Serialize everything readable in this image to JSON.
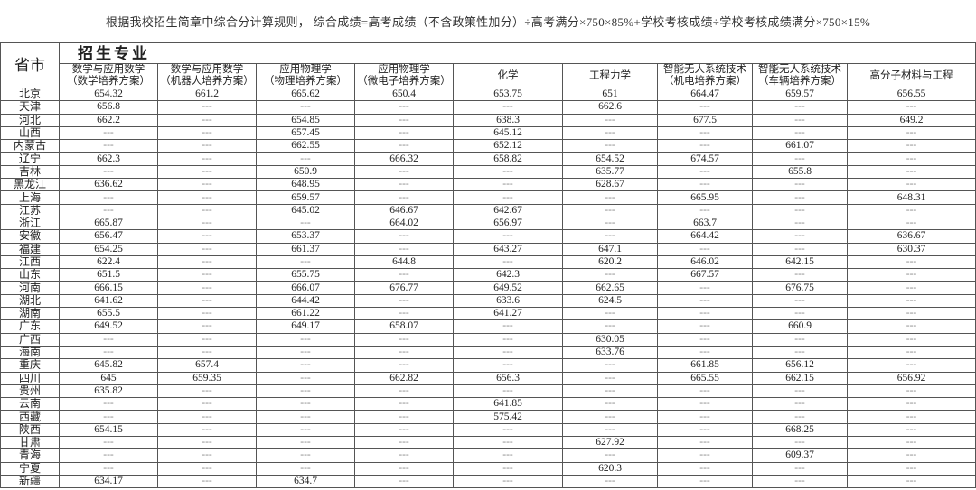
{
  "note": "根据我校招生简章中综合分计算规则， 综合成绩=高考成绩（不含政策性加分）÷高考满分×750×85%+学校考核成绩÷学校考核成绩满分×750×15%",
  "table": {
    "province_header": "省市",
    "group_header": "招生专业",
    "columns": [
      [
        "数学与应用数学",
        "（数学培养方案）"
      ],
      [
        "数学与应用数学",
        "（机器人培养方案）"
      ],
      [
        "应用物理学",
        "（物理培养方案）"
      ],
      [
        "应用物理学",
        "（微电子培养方案）"
      ],
      [
        "化学",
        ""
      ],
      [
        "工程力学",
        ""
      ],
      [
        "智能无人系统技术",
        "（机电培养方案）"
      ],
      [
        "智能无人系统技术",
        "（车辆培养方案）"
      ],
      [
        "高分子材料与工程",
        ""
      ]
    ],
    "rows": [
      {
        "province": "北京",
        "values": [
          "654.32",
          "661.2",
          "665.62",
          "650.4",
          "653.75",
          "651",
          "664.47",
          "659.57",
          "656.55"
        ]
      },
      {
        "province": "天津",
        "values": [
          "656.8",
          "---",
          "---",
          "---",
          "---",
          "662.6",
          "---",
          "---",
          "---"
        ]
      },
      {
        "province": "河北",
        "values": [
          "662.2",
          "---",
          "654.85",
          "---",
          "638.3",
          "---",
          "677.5",
          "---",
          "649.2"
        ]
      },
      {
        "province": "山西",
        "values": [
          "---",
          "---",
          "657.45",
          "---",
          "645.12",
          "---",
          "---",
          "---",
          "---"
        ]
      },
      {
        "province": "内蒙古",
        "values": [
          "---",
          "---",
          "662.55",
          "---",
          "652.12",
          "---",
          "---",
          "661.07",
          "---"
        ]
      },
      {
        "province": "辽宁",
        "values": [
          "662.3",
          "---",
          "---",
          "666.32",
          "658.82",
          "654.52",
          "674.57",
          "---",
          "---"
        ]
      },
      {
        "province": "吉林",
        "values": [
          "---",
          "---",
          "650.9",
          "---",
          "---",
          "635.77",
          "---",
          "655.8",
          "---"
        ]
      },
      {
        "province": "黑龙江",
        "values": [
          "636.62",
          "---",
          "648.95",
          "---",
          "---",
          "628.67",
          "---",
          "---",
          "---"
        ]
      },
      {
        "province": "上海",
        "values": [
          "---",
          "---",
          "659.57",
          "---",
          "---",
          "---",
          "665.95",
          "---",
          "648.31"
        ]
      },
      {
        "province": "江苏",
        "values": [
          "---",
          "---",
          "645.02",
          "646.67",
          "642.67",
          "---",
          "---",
          "---",
          "---"
        ]
      },
      {
        "province": "浙江",
        "values": [
          "665.87",
          "---",
          "---",
          "664.02",
          "656.97",
          "---",
          "663.7",
          "---",
          "---"
        ]
      },
      {
        "province": "安徽",
        "values": [
          "656.47",
          "---",
          "653.37",
          "---",
          "---",
          "---",
          "664.42",
          "---",
          "636.67"
        ]
      },
      {
        "province": "福建",
        "values": [
          "654.25",
          "---",
          "661.37",
          "---",
          "643.27",
          "647.1",
          "---",
          "---",
          "630.37"
        ]
      },
      {
        "province": "江西",
        "values": [
          "622.4",
          "---",
          "---",
          "644.8",
          "---",
          "620.2",
          "646.02",
          "642.15",
          "---"
        ]
      },
      {
        "province": "山东",
        "values": [
          "651.5",
          "---",
          "655.75",
          "---",
          "642.3",
          "---",
          "667.57",
          "---",
          "---"
        ]
      },
      {
        "province": "河南",
        "values": [
          "666.15",
          "---",
          "666.07",
          "676.77",
          "649.52",
          "662.65",
          "---",
          "676.75",
          "---"
        ]
      },
      {
        "province": "湖北",
        "values": [
          "641.62",
          "---",
          "644.42",
          "---",
          "633.6",
          "624.5",
          "---",
          "---",
          "---"
        ]
      },
      {
        "province": "湖南",
        "values": [
          "655.5",
          "---",
          "661.22",
          "---",
          "641.27",
          "---",
          "---",
          "---",
          "---"
        ]
      },
      {
        "province": "广东",
        "values": [
          "649.52",
          "---",
          "649.17",
          "658.07",
          "---",
          "---",
          "---",
          "660.9",
          "---"
        ]
      },
      {
        "province": "广西",
        "values": [
          "---",
          "---",
          "---",
          "---",
          "---",
          "630.05",
          "---",
          "---",
          "---"
        ]
      },
      {
        "province": "海南",
        "values": [
          "---",
          "---",
          "---",
          "---",
          "---",
          "633.76",
          "---",
          "---",
          "---"
        ]
      },
      {
        "province": "重庆",
        "values": [
          "645.82",
          "657.4",
          "---",
          "---",
          "---",
          "---",
          "661.85",
          "656.12",
          "---"
        ]
      },
      {
        "province": "四川",
        "values": [
          "645",
          "659.35",
          "---",
          "662.82",
          "656.3",
          "---",
          "665.55",
          "662.15",
          "656.92"
        ]
      },
      {
        "province": "贵州",
        "values": [
          "635.82",
          "---",
          "---",
          "---",
          "---",
          "---",
          "---",
          "---",
          "---"
        ]
      },
      {
        "province": "云南",
        "values": [
          "---",
          "---",
          "---",
          "---",
          "641.85",
          "---",
          "---",
          "---",
          "---"
        ]
      },
      {
        "province": "西藏",
        "values": [
          "---",
          "---",
          "---",
          "---",
          "575.42",
          "---",
          "---",
          "---",
          "---"
        ]
      },
      {
        "province": "陕西",
        "values": [
          "654.15",
          "---",
          "---",
          "---",
          "---",
          "---",
          "---",
          "668.25",
          "---"
        ]
      },
      {
        "province": "甘肃",
        "values": [
          "---",
          "---",
          "---",
          "---",
          "---",
          "627.92",
          "---",
          "---",
          "---"
        ]
      },
      {
        "province": "青海",
        "values": [
          "---",
          "---",
          "---",
          "---",
          "---",
          "---",
          "---",
          "609.37",
          "---"
        ]
      },
      {
        "province": "宁夏",
        "values": [
          "---",
          "---",
          "---",
          "---",
          "---",
          "620.3",
          "---",
          "---",
          "---"
        ]
      },
      {
        "province": "新疆",
        "values": [
          "634.17",
          "---",
          "634.7",
          "---",
          "---",
          "---",
          "---",
          "---",
          "---"
        ]
      }
    ]
  }
}
